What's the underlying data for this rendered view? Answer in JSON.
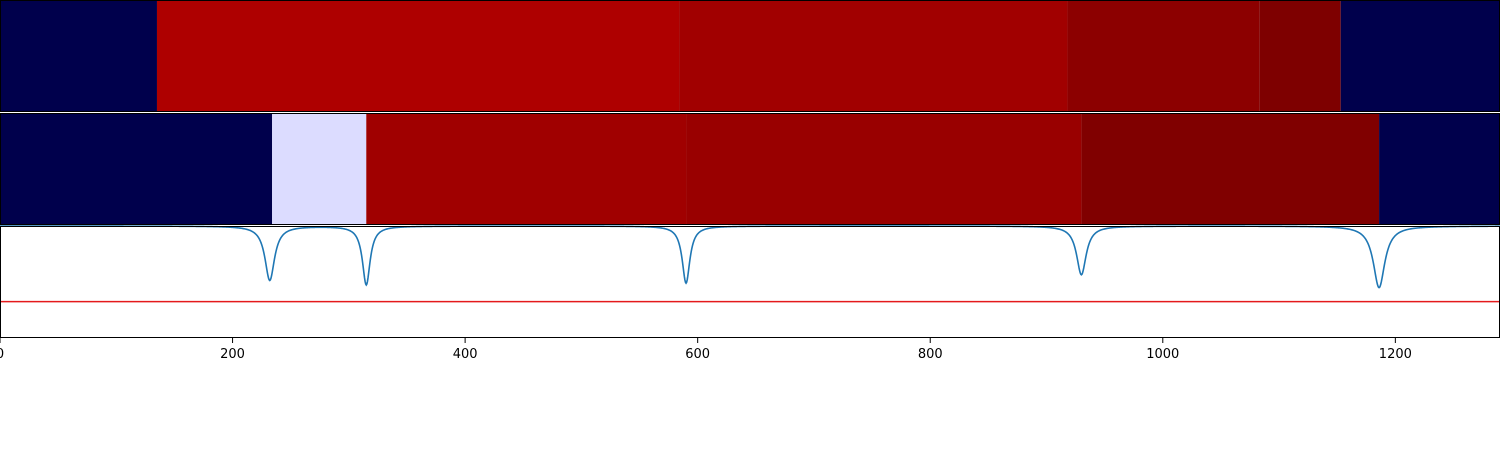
{
  "chart_data": {
    "type": "heatmap",
    "x_range": [
      0,
      1290
    ],
    "x_ticks": [
      0,
      200,
      400,
      600,
      800,
      1000,
      1200
    ],
    "x_tick_labels": [
      "0",
      "200",
      "400",
      "600",
      "800",
      "1000",
      "1200"
    ],
    "grid": false,
    "rows": [
      {
        "segments": [
          {
            "x0": 0,
            "x1": 135,
            "color": "#00004c"
          },
          {
            "x0": 135,
            "x1": 584,
            "color": "#ae0000"
          },
          {
            "x0": 584,
            "x1": 918,
            "color": "#a10000"
          },
          {
            "x0": 918,
            "x1": 1083,
            "color": "#8c0000"
          },
          {
            "x0": 1083,
            "x1": 1153,
            "color": "#7e0000"
          },
          {
            "x0": 1153,
            "x1": 1290,
            "color": "#00004c"
          }
        ]
      },
      {
        "segments": [
          {
            "x0": 0,
            "x1": 234,
            "color": "#00004c"
          },
          {
            "x0": 234,
            "x1": 315,
            "color": "#dcdcff"
          },
          {
            "x0": 315,
            "x1": 590,
            "color": "#a00000"
          },
          {
            "x0": 590,
            "x1": 930,
            "color": "#990000"
          },
          {
            "x0": 930,
            "x1": 1186,
            "color": "#800000"
          },
          {
            "x0": 1186,
            "x1": 1290,
            "color": "#00004c"
          }
        ]
      }
    ],
    "line_panel": {
      "y_range": [
        -1,
        1
      ],
      "baseline": 1,
      "threshold": -0.35,
      "threshold_color": "#e41a1c",
      "series_color": "#1f77b4",
      "dips": [
        {
          "x": 232,
          "depth": 0.97,
          "width": 5
        },
        {
          "x": 315,
          "depth": 1.05,
          "width": 4
        },
        {
          "x": 590,
          "depth": 1.02,
          "width": 4
        },
        {
          "x": 930,
          "depth": 0.87,
          "width": 5
        },
        {
          "x": 1186,
          "depth": 1.1,
          "width": 6
        }
      ]
    }
  }
}
